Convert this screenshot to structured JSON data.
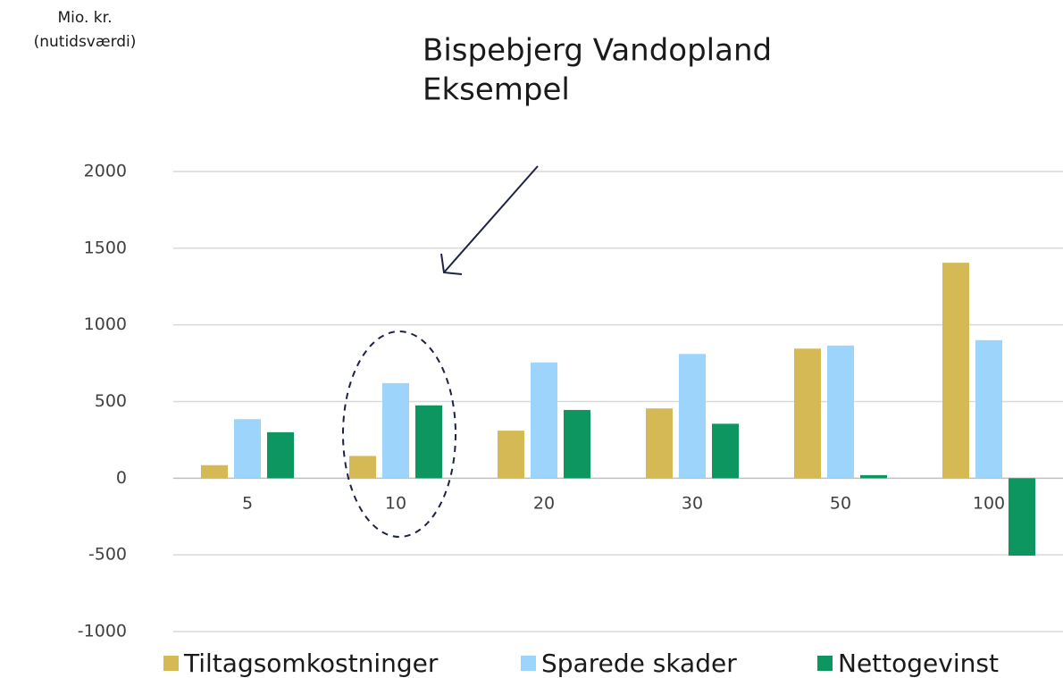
{
  "chart_data": {
    "type": "bar",
    "title": "Bispebjerg Vandopland",
    "subtitle": "Eksempel",
    "y_label": [
      "Mio. kr.",
      "(nutidsværdi)"
    ],
    "categories": [
      "5",
      "10",
      "20",
      "30",
      "50",
      "100"
    ],
    "series": [
      {
        "name": "Tiltagsomkostninger",
        "color": "#d4b955",
        "values": [
          85,
          145,
          310,
          455,
          845,
          1405
        ]
      },
      {
        "name": "Sparede skader",
        "color": "#9dd4fb",
        "values": [
          385,
          620,
          755,
          810,
          865,
          900
        ]
      },
      {
        "name": "Nettogevinst",
        "color": "#0d9660",
        "values": [
          300,
          475,
          445,
          355,
          20,
          -505
        ]
      }
    ],
    "ylim": [
      -1000,
      2000
    ],
    "yticks": [
      -1000,
      -500,
      0,
      500,
      1000,
      1500,
      2000
    ],
    "grid": true,
    "legend": "bottom"
  }
}
